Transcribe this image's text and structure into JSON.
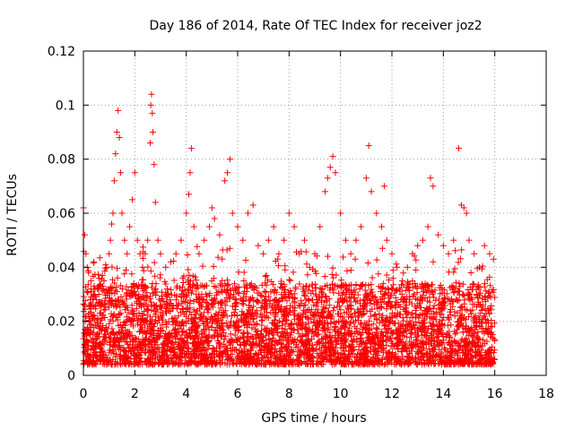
{
  "chart_data": {
    "type": "scatter",
    "title": "Day 186 of 2014, Rate Of TEC Index for receiver joz2",
    "xlabel": "GPS time / hours",
    "ylabel": "ROTI / TECUs",
    "xlim": [
      0,
      18
    ],
    "ylim": [
      0,
      0.12
    ],
    "xticks": [
      "0",
      "2",
      "4",
      "6",
      "8",
      "10",
      "12",
      "14",
      "16",
      "18"
    ],
    "yticks": [
      "0",
      "0.02",
      "0.04",
      "0.06",
      "0.08",
      "0.1",
      "0.12"
    ],
    "grid": true,
    "marker": "+",
    "series": [
      {
        "name": "ROTI",
        "color": "#ff0000",
        "x": [
          0.0,
          0.05,
          0.1,
          0.15,
          0.2,
          0.3,
          0.4,
          0.5,
          0.6,
          0.7,
          0.8,
          0.9,
          1.0,
          1.05,
          1.1,
          1.15,
          1.2,
          1.25,
          1.3,
          1.35,
          1.4,
          1.45,
          1.5,
          1.6,
          1.7,
          1.8,
          1.9,
          2.0,
          2.1,
          2.2,
          2.3,
          2.4,
          2.5,
          2.6,
          2.62,
          2.65,
          2.68,
          2.7,
          2.75,
          2.8,
          2.9,
          3.0,
          3.2,
          3.4,
          3.6,
          3.8,
          4.0,
          4.1,
          4.15,
          4.2,
          4.3,
          4.5,
          4.7,
          4.9,
          5.0,
          5.1,
          5.3,
          5.5,
          5.6,
          5.7,
          5.8,
          6.0,
          6.2,
          6.4,
          6.6,
          6.8,
          7.0,
          7.2,
          7.4,
          7.6,
          7.8,
          8.0,
          8.2,
          8.4,
          8.6,
          8.8,
          9.0,
          9.2,
          9.4,
          9.5,
          9.6,
          9.7,
          9.8,
          10.0,
          10.2,
          10.4,
          10.6,
          10.8,
          11.0,
          11.1,
          11.2,
          11.4,
          11.6,
          11.7,
          11.8,
          12.0,
          12.2,
          12.4,
          12.6,
          12.8,
          13.0,
          13.2,
          13.4,
          13.5,
          13.6,
          13.8,
          14.0,
          14.2,
          14.4,
          14.6,
          14.7,
          14.8,
          14.9,
          15.0,
          15.2,
          15.4,
          15.6,
          15.8,
          15.95
        ],
        "y": [
          0.062,
          0.052,
          0.045,
          0.04,
          0.038,
          0.035,
          0.03,
          0.028,
          0.03,
          0.032,
          0.035,
          0.04,
          0.045,
          0.05,
          0.056,
          0.06,
          0.072,
          0.082,
          0.09,
          0.098,
          0.088,
          0.075,
          0.06,
          0.05,
          0.045,
          0.055,
          0.065,
          0.075,
          0.05,
          0.045,
          0.04,
          0.045,
          0.05,
          0.086,
          0.1,
          0.104,
          0.097,
          0.09,
          0.078,
          0.064,
          0.05,
          0.045,
          0.04,
          0.042,
          0.045,
          0.05,
          0.06,
          0.067,
          0.075,
          0.084,
          0.055,
          0.045,
          0.05,
          0.055,
          0.062,
          0.058,
          0.052,
          0.072,
          0.075,
          0.08,
          0.06,
          0.055,
          0.05,
          0.06,
          0.063,
          0.048,
          0.045,
          0.05,
          0.055,
          0.045,
          0.05,
          0.06,
          0.055,
          0.045,
          0.05,
          0.04,
          0.045,
          0.055,
          0.068,
          0.073,
          0.077,
          0.081,
          0.075,
          0.06,
          0.05,
          0.045,
          0.05,
          0.055,
          0.073,
          0.085,
          0.068,
          0.06,
          0.055,
          0.07,
          0.05,
          0.045,
          0.04,
          0.035,
          0.04,
          0.045,
          0.048,
          0.05,
          0.055,
          0.073,
          0.07,
          0.052,
          0.048,
          0.045,
          0.05,
          0.084,
          0.063,
          0.062,
          0.06,
          0.05,
          0.045,
          0.04,
          0.048,
          0.045,
          0.043
        ]
      }
    ]
  }
}
